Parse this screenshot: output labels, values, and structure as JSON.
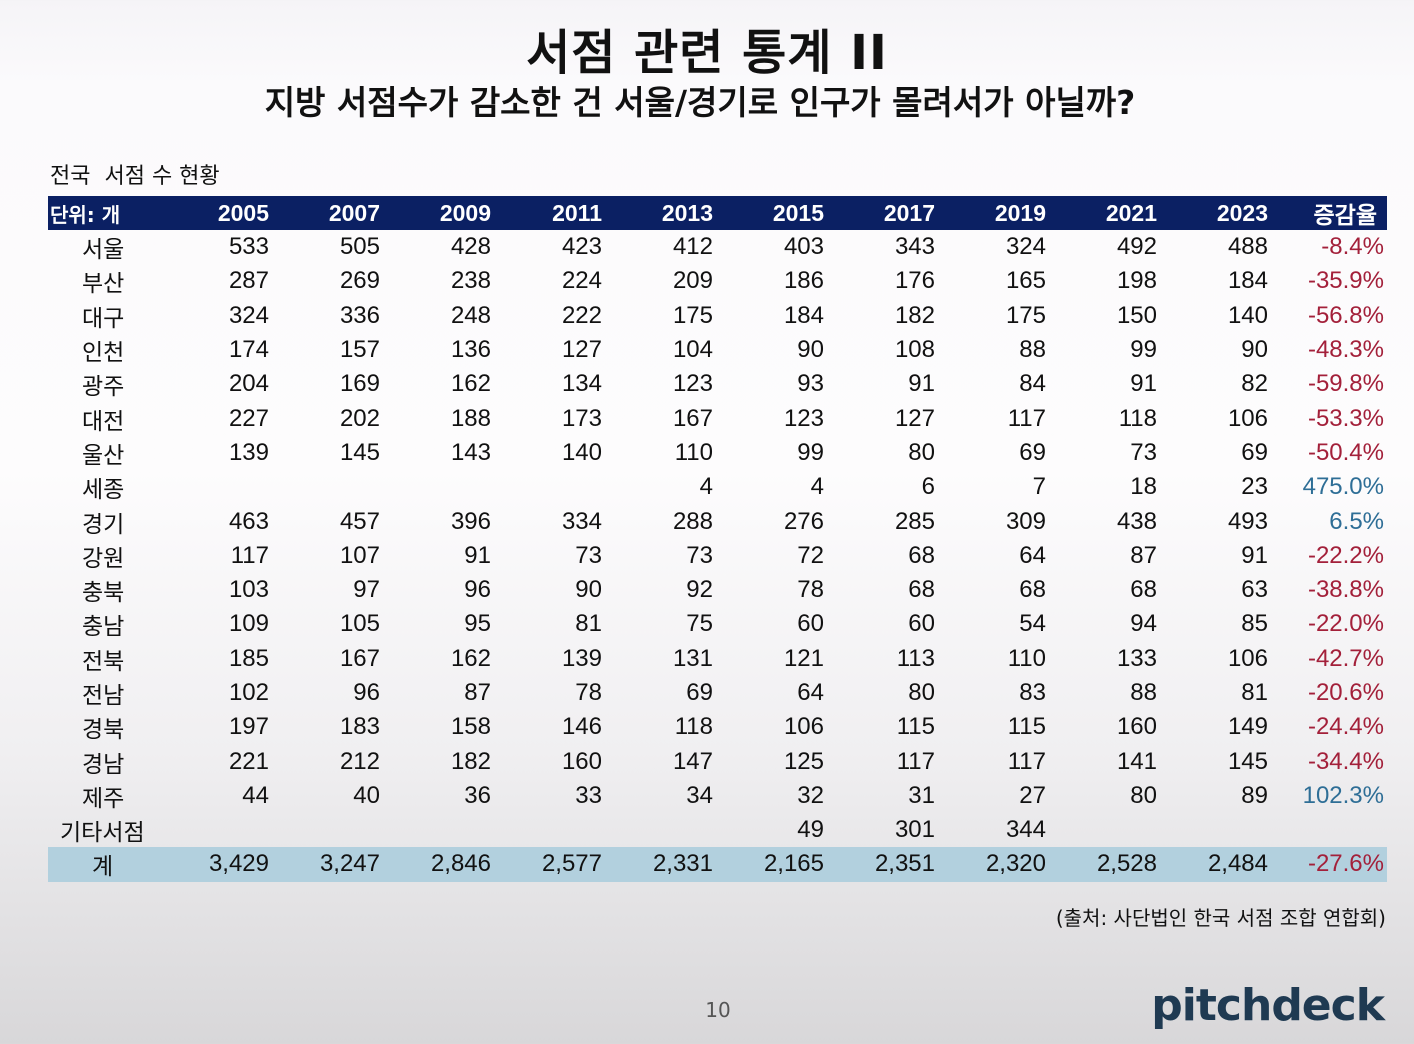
{
  "title": "서점 관련 통계 II",
  "subtitle": "지방 서점수가 감소한 건 서울/경기로 인구가 몰려서가 아닐까?",
  "caption": "전국  서점 수 현황",
  "table": {
    "unit_label": "단위: 개",
    "years": [
      "2005",
      "2007",
      "2009",
      "2011",
      "2013",
      "2015",
      "2017",
      "2019",
      "2021",
      "2023"
    ],
    "change_label": "증감율",
    "rows": [
      {
        "region": "서울",
        "values": [
          "533",
          "505",
          "428",
          "423",
          "412",
          "403",
          "343",
          "324",
          "492",
          "488"
        ],
        "change": "-8.4%"
      },
      {
        "region": "부산",
        "values": [
          "287",
          "269",
          "238",
          "224",
          "209",
          "186",
          "176",
          "165",
          "198",
          "184"
        ],
        "change": "-35.9%"
      },
      {
        "region": "대구",
        "values": [
          "324",
          "336",
          "248",
          "222",
          "175",
          "184",
          "182",
          "175",
          "150",
          "140"
        ],
        "change": "-56.8%"
      },
      {
        "region": "인천",
        "values": [
          "174",
          "157",
          "136",
          "127",
          "104",
          "90",
          "108",
          "88",
          "99",
          "90"
        ],
        "change": "-48.3%"
      },
      {
        "region": "광주",
        "values": [
          "204",
          "169",
          "162",
          "134",
          "123",
          "93",
          "91",
          "84",
          "91",
          "82"
        ],
        "change": "-59.8%"
      },
      {
        "region": "대전",
        "values": [
          "227",
          "202",
          "188",
          "173",
          "167",
          "123",
          "127",
          "117",
          "118",
          "106"
        ],
        "change": "-53.3%"
      },
      {
        "region": "울산",
        "values": [
          "139",
          "145",
          "143",
          "140",
          "110",
          "99",
          "80",
          "69",
          "73",
          "69"
        ],
        "change": "-50.4%"
      },
      {
        "region": "세종",
        "values": [
          "",
          "",
          "",
          "",
          "4",
          "4",
          "6",
          "7",
          "18",
          "23"
        ],
        "change": "475.0%"
      },
      {
        "region": "경기",
        "values": [
          "463",
          "457",
          "396",
          "334",
          "288",
          "276",
          "285",
          "309",
          "438",
          "493"
        ],
        "change": "6.5%"
      },
      {
        "region": "강원",
        "values": [
          "117",
          "107",
          "91",
          "73",
          "73",
          "72",
          "68",
          "64",
          "87",
          "91"
        ],
        "change": "-22.2%"
      },
      {
        "region": "충북",
        "values": [
          "103",
          "97",
          "96",
          "90",
          "92",
          "78",
          "68",
          "68",
          "68",
          "63"
        ],
        "change": "-38.8%"
      },
      {
        "region": "충남",
        "values": [
          "109",
          "105",
          "95",
          "81",
          "75",
          "60",
          "60",
          "54",
          "94",
          "85"
        ],
        "change": "-22.0%"
      },
      {
        "region": "전북",
        "values": [
          "185",
          "167",
          "162",
          "139",
          "131",
          "121",
          "113",
          "110",
          "133",
          "106"
        ],
        "change": "-42.7%"
      },
      {
        "region": "전남",
        "values": [
          "102",
          "96",
          "87",
          "78",
          "69",
          "64",
          "80",
          "83",
          "88",
          "81"
        ],
        "change": "-20.6%"
      },
      {
        "region": "경북",
        "values": [
          "197",
          "183",
          "158",
          "146",
          "118",
          "106",
          "115",
          "115",
          "160",
          "149"
        ],
        "change": "-24.4%"
      },
      {
        "region": "경남",
        "values": [
          "221",
          "212",
          "182",
          "160",
          "147",
          "125",
          "117",
          "117",
          "141",
          "145"
        ],
        "change": "-34.4%"
      },
      {
        "region": "제주",
        "values": [
          "44",
          "40",
          "36",
          "33",
          "34",
          "32",
          "31",
          "27",
          "80",
          "89"
        ],
        "change": "102.3%"
      },
      {
        "region": "기타서점",
        "values": [
          "",
          "",
          "",
          "",
          "",
          "49",
          "301",
          "344",
          "",
          ""
        ],
        "change": ""
      }
    ],
    "total": {
      "region": "계",
      "values": [
        "3,429",
        "3,247",
        "2,846",
        "2,577",
        "2,331",
        "2,165",
        "2,351",
        "2,320",
        "2,528",
        "2,484"
      ],
      "change": "-27.6%"
    }
  },
  "source": "(출처: 사단법인 한국 서점 조합 연합회)",
  "page_number": "10",
  "logo_text": "pitchdeck",
  "colors": {
    "header_bg": "#0b2063",
    "total_bg": "#b2d0de",
    "negative": "#a3203a",
    "positive": "#2e6e96",
    "logo": "#1f3a52"
  }
}
